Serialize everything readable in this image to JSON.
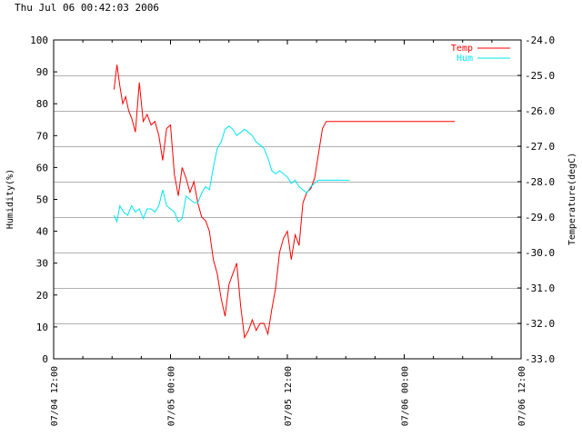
{
  "timestamp": "Thu Jul 06 00:42:03 2006",
  "chart_data": {
    "type": "line",
    "title": "",
    "xlabel": "",
    "ylabel_left": "Humidity(%)",
    "ylabel_right": "Temperature(degC)",
    "ylim_left": [
      0,
      100
    ],
    "ylim_right": [
      -33.0,
      -24.0
    ],
    "x_range_hours": [
      0,
      48
    ],
    "x_tick_labels": [
      "07/04 12:00",
      "07/05 00:00",
      "07/05 12:00",
      "07/06 00:00",
      "07/06 12:00"
    ],
    "y_left_ticks": [
      0,
      10,
      20,
      30,
      40,
      50,
      60,
      70,
      80,
      90,
      100
    ],
    "y_right_ticks": [
      "-33.0",
      "-32.0",
      "-31.0",
      "-30.0",
      "-29.0",
      "-28.0",
      "-27.0",
      "-26.0",
      "-25.0",
      "-24.0"
    ],
    "grid": "horizontal at right-axis ticks",
    "legend_position": "top-right",
    "series": [
      {
        "name": "Temp",
        "axis": "right",
        "color": "#ff0000",
        "x": [
          6.2,
          6.5,
          6.8,
          7.1,
          7.4,
          7.7,
          8.0,
          8.4,
          8.8,
          9.2,
          9.6,
          10.0,
          10.4,
          10.8,
          11.2,
          11.6,
          12.0,
          12.4,
          12.8,
          13.2,
          13.6,
          14.0,
          14.4,
          14.8,
          15.2,
          15.6,
          16.0,
          16.4,
          16.8,
          17.2,
          17.6,
          18.0,
          18.4,
          18.8,
          19.2,
          19.6,
          20.0,
          20.4,
          20.8,
          21.2,
          21.6,
          22.0,
          22.4,
          22.8,
          23.2,
          23.6,
          24.0,
          24.4,
          24.8,
          25.2,
          25.6,
          26.0,
          26.4,
          26.8,
          27.2,
          27.6,
          28.0,
          28.4,
          28.8,
          29.2,
          29.6,
          30.0,
          30.4,
          30.8,
          31.2,
          31.6,
          32.0,
          32.4,
          32.8,
          33.2,
          33.6,
          34.0,
          34.4,
          34.8,
          35.2,
          35.6,
          36.0,
          36.4,
          36.8,
          37.2,
          37.6,
          38.0,
          38.4,
          38.8,
          39.2,
          39.6,
          40.0,
          40.4,
          40.8,
          41.2
        ],
        "y": [
          -25.4,
          -24.7,
          -25.3,
          -25.8,
          -25.6,
          -26.0,
          -26.2,
          -26.6,
          -25.2,
          -26.3,
          -26.1,
          -26.4,
          -26.3,
          -26.7,
          -27.4,
          -26.5,
          -26.4,
          -27.8,
          -28.4,
          -27.6,
          -27.9,
          -28.3,
          -28.0,
          -28.6,
          -29.0,
          -29.1,
          -29.4,
          -30.2,
          -30.6,
          -31.3,
          -31.8,
          -30.9,
          -30.6,
          -30.3,
          -31.5,
          -32.4,
          -32.2,
          -31.9,
          -32.2,
          -32.0,
          -32.0,
          -32.3,
          -31.6,
          -31.0,
          -30.0,
          -29.6,
          -29.4,
          -30.2,
          -29.5,
          -29.8,
          -28.6,
          -28.3,
          -28.2,
          -27.9,
          -27.2,
          -26.5,
          -26.3,
          -26.3,
          -26.3,
          -26.3,
          -26.3,
          -26.3,
          -26.3,
          -26.3,
          -26.3,
          -26.3,
          -26.3,
          -26.3,
          -26.3,
          -26.3,
          -26.3,
          -26.3,
          -26.3,
          -26.3,
          -26.3,
          -26.3,
          -26.3,
          -26.3,
          -26.3,
          -26.3,
          -26.3,
          -26.3,
          -26.3,
          -26.3,
          -26.3,
          -26.3,
          -26.3,
          -26.3,
          -26.3,
          -26.3
        ]
      },
      {
        "name": "Hum",
        "axis": "left",
        "color": "#00e5ee",
        "x": [
          6.2,
          6.5,
          6.8,
          7.2,
          7.6,
          8.0,
          8.4,
          8.8,
          9.2,
          9.6,
          10.0,
          10.4,
          10.8,
          11.2,
          11.6,
          12.0,
          12.4,
          12.8,
          13.2,
          13.6,
          14.0,
          14.4,
          14.8,
          15.2,
          15.6,
          16.0,
          16.4,
          16.8,
          17.2,
          17.6,
          18.0,
          18.4,
          18.8,
          19.2,
          19.6,
          20.0,
          20.4,
          20.8,
          21.2,
          21.6,
          22.0,
          22.4,
          22.8,
          23.2,
          23.6,
          24.0,
          24.4,
          24.8,
          25.2,
          25.6,
          26.0,
          26.4,
          26.8,
          27.2,
          27.6,
          28.0,
          28.4,
          28.8,
          29.2,
          29.6,
          30.0,
          30.4
        ],
        "y": [
          45,
          43,
          48,
          46,
          45,
          48,
          46,
          47,
          44,
          47,
          47,
          46,
          48,
          53,
          48,
          47,
          46,
          43,
          44,
          51,
          50,
          49,
          49,
          52,
          54,
          53,
          60,
          66,
          68,
          72,
          73,
          72,
          70,
          71,
          72,
          71,
          70,
          68,
          67,
          66,
          63,
          59,
          58,
          59,
          58,
          57,
          55,
          56,
          54,
          53,
          52,
          54,
          55,
          56,
          56,
          56,
          56,
          56,
          56,
          56,
          56,
          56
        ]
      }
    ]
  }
}
